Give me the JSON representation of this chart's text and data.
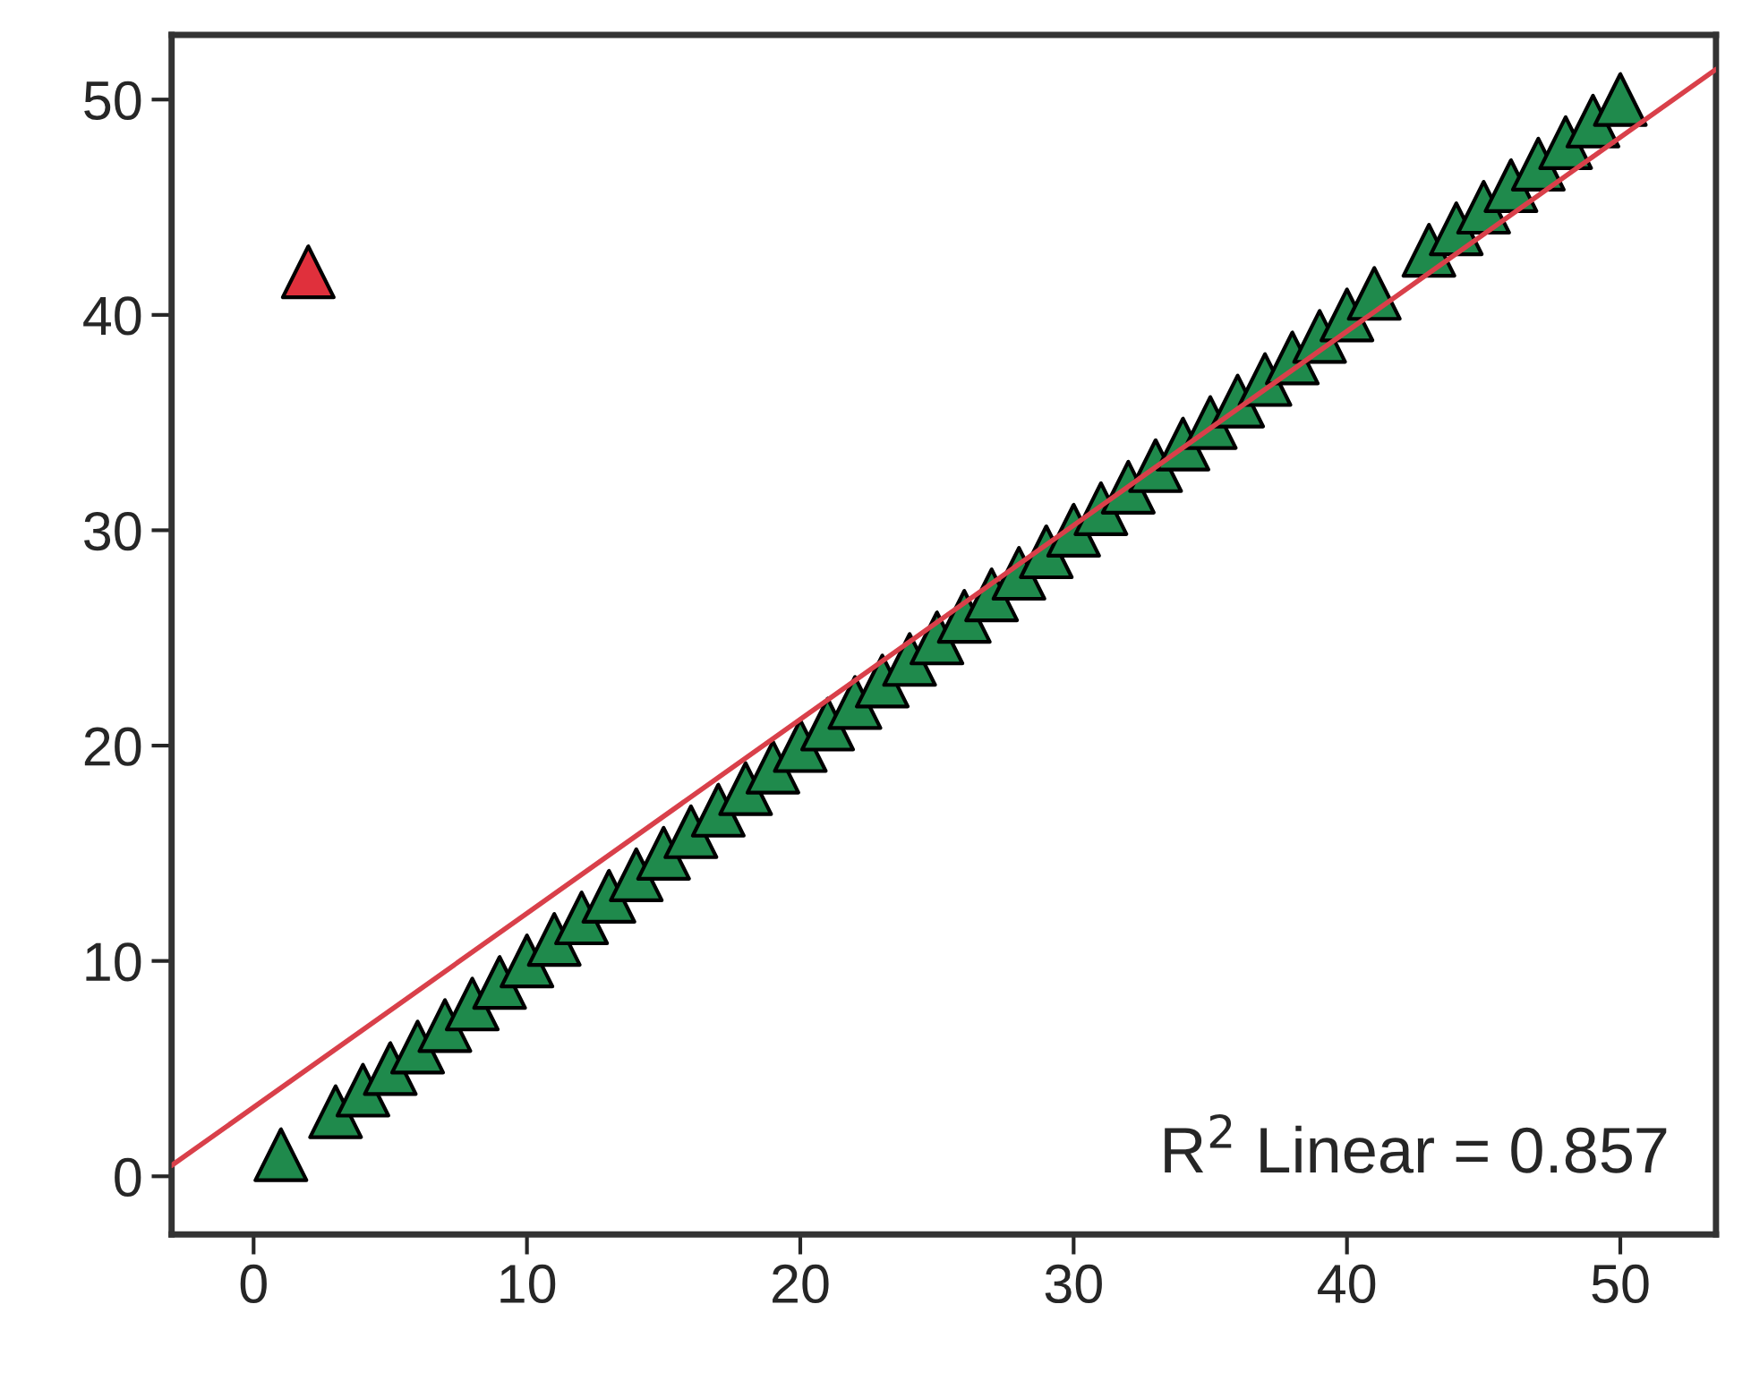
{
  "chart_data": {
    "type": "scatter",
    "grid": false,
    "legend": false,
    "xlim": [
      -3,
      53.5
    ],
    "ylim": [
      -2.7,
      53
    ],
    "xticks": [
      0,
      10,
      20,
      30,
      40,
      50
    ],
    "yticks": [
      0,
      10,
      20,
      30,
      40,
      50
    ],
    "series": [
      {
        "type": "line",
        "color": "#d9404a",
        "x": [
          -3,
          53.5
        ],
        "values": [
          0.5,
          51.4
        ]
      },
      {
        "marker": "triangle",
        "color": "#1f8a4c",
        "x": [
          1,
          3,
          4,
          5,
          6,
          7,
          8,
          9,
          10,
          11,
          12,
          13,
          14,
          15,
          16,
          17,
          18,
          19,
          20,
          21,
          22,
          23,
          24,
          25,
          26,
          27,
          28,
          29,
          30,
          31,
          32,
          33,
          34,
          35,
          36,
          37,
          38,
          39,
          40,
          41,
          43,
          44,
          45,
          46,
          47,
          48,
          49,
          50
        ],
        "values": [
          1,
          3,
          4,
          5,
          6,
          7,
          8,
          9,
          10,
          11,
          12,
          13,
          14,
          15,
          16,
          17,
          18,
          19,
          20,
          21,
          22,
          23,
          24,
          25,
          26,
          27,
          28,
          29,
          30,
          31,
          32,
          33,
          34,
          35,
          36,
          37,
          38,
          39,
          40,
          41,
          43,
          44,
          45,
          46,
          47,
          48,
          49,
          50
        ]
      },
      {
        "marker": "triangle",
        "color": "#e0303c",
        "x": [
          2
        ],
        "values": [
          42
        ]
      }
    ],
    "annotations": [
      "R$^{2}$ Linear = 0.857"
    ]
  }
}
